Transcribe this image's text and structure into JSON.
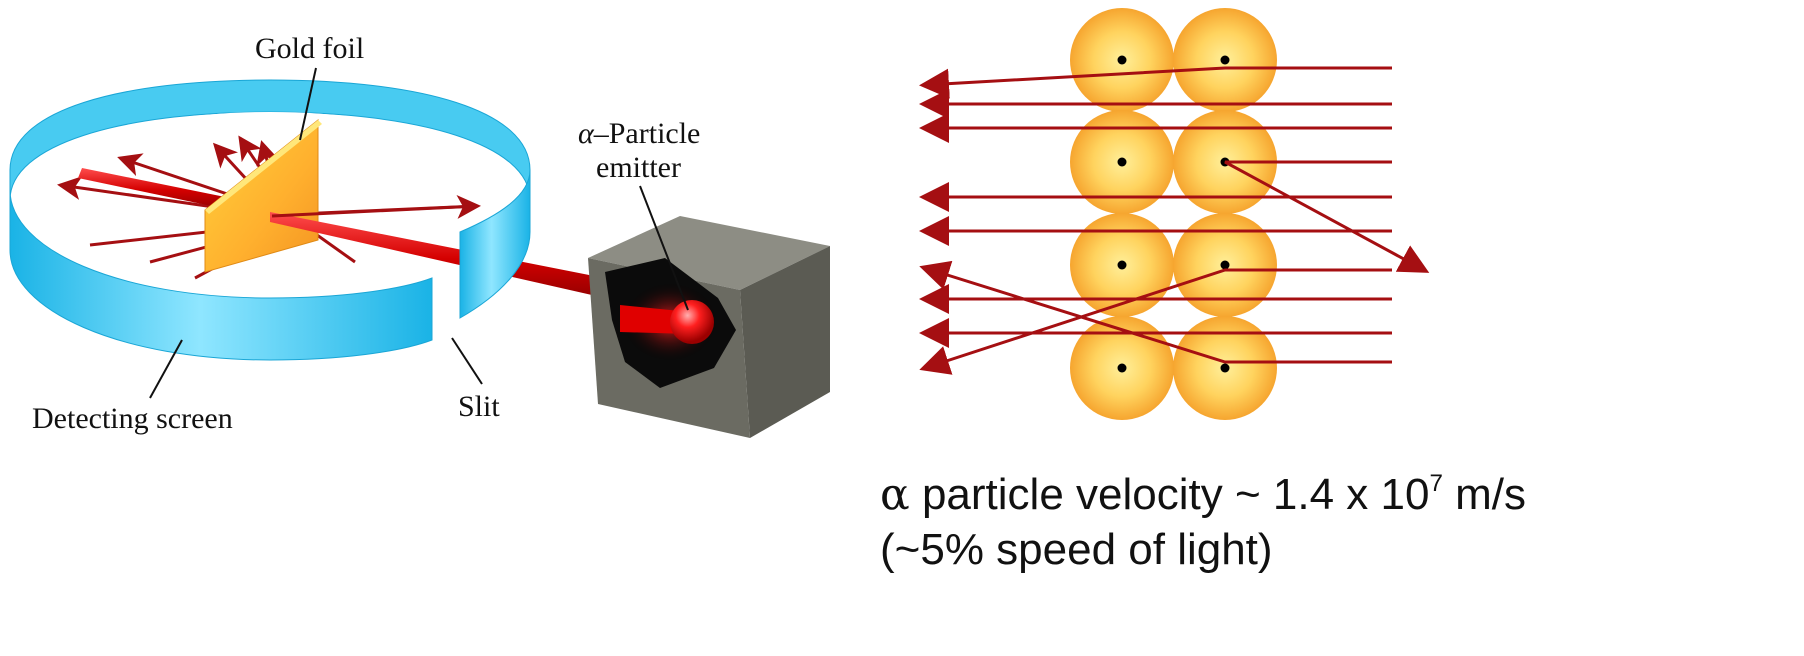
{
  "labels": {
    "gold_foil": "Gold foil",
    "emitter_line1_symbol": "α",
    "emitter_line1_text": "–Particle",
    "emitter_line2": "emitter",
    "detecting_screen": "Detecting screen",
    "slit": "Slit"
  },
  "caption": {
    "symbol": "α",
    "line1_text": " particle velocity ~ 1.4 x 10",
    "line1_exponent": "7",
    "line1_unit": " m/s",
    "line2": "(~5% speed of light)"
  },
  "colors": {
    "gold_atom": "#f7a835",
    "beam_red": "#d40000",
    "track_red": "#a50f12",
    "screen_cyan": "#2ec4ee",
    "emitter_box": "#5f5f57"
  }
}
